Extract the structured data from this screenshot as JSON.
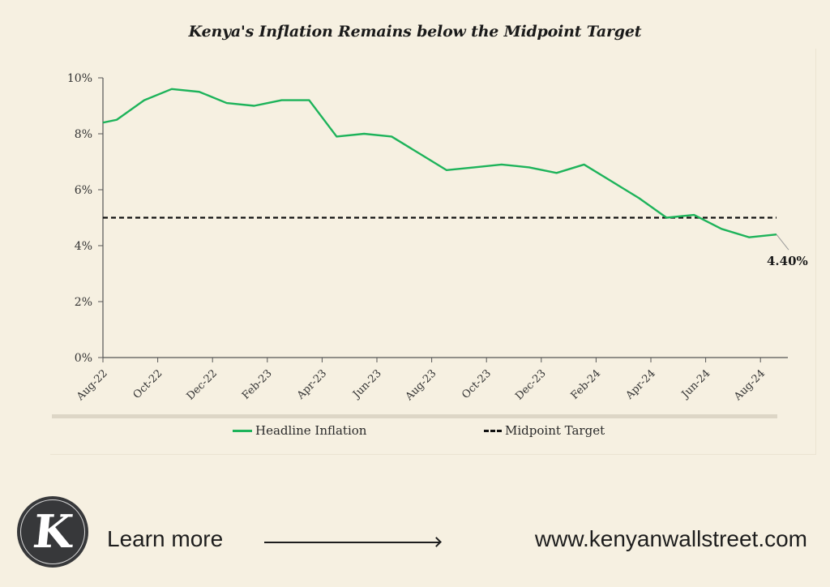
{
  "title": "Kenya's Inflation Remains below the Midpoint Target",
  "chart_data": {
    "type": "line",
    "title": "Kenya's Inflation Remains below the Midpoint Target",
    "xlabel": "",
    "ylabel": "",
    "ylim": [
      0,
      10
    ],
    "yticks": [
      "0%",
      "2%",
      "4%",
      "6%",
      "8%",
      "10%"
    ],
    "xticks": [
      "Aug-22",
      "Oct-22",
      "Dec-22",
      "Feb-23",
      "Apr-23",
      "Jun-23",
      "Aug-23",
      "Oct-23",
      "Dec-23",
      "Feb-24",
      "Apr-24",
      "Jun-24",
      "Aug-24"
    ],
    "x": [
      "Aug-22",
      "Sep-22",
      "Oct-22",
      "Nov-22",
      "Dec-22",
      "Jan-23",
      "Feb-23",
      "Mar-23",
      "Apr-23",
      "May-23",
      "Jun-23",
      "Jul-23",
      "Aug-23",
      "Sep-23",
      "Oct-23",
      "Nov-23",
      "Dec-23",
      "Jan-24",
      "Feb-24",
      "Mar-24",
      "Apr-24",
      "May-24",
      "Jun-24",
      "Jul-24",
      "Aug-24"
    ],
    "series": [
      {
        "name": "Headline Inflation",
        "color": "#1db35a",
        "style": "solid",
        "values": [
          8.5,
          9.2,
          9.6,
          9.5,
          9.1,
          9.0,
          9.2,
          9.2,
          7.9,
          8.0,
          7.9,
          7.3,
          6.7,
          6.8,
          6.9,
          6.8,
          6.6,
          6.9,
          6.3,
          5.7,
          5.0,
          5.1,
          4.6,
          4.3,
          4.4
        ]
      },
      {
        "name": "Midpoint Target",
        "color": "#111111",
        "style": "dashed",
        "values": [
          5,
          5,
          5,
          5,
          5,
          5,
          5,
          5,
          5,
          5,
          5,
          5,
          5,
          5,
          5,
          5,
          5,
          5,
          5,
          5,
          5,
          5,
          5,
          5,
          5
        ]
      }
    ],
    "annotations": [
      {
        "x": "Aug-24",
        "label": "4.40%"
      }
    ],
    "legend_position": "bottom",
    "grid": false
  },
  "legend": {
    "items": [
      {
        "label": "Headline Inflation"
      },
      {
        "label": "Midpoint Target"
      }
    ]
  },
  "annotation_label": "4.40%",
  "footer": {
    "logo_letter": "K",
    "learn_more": "Learn more",
    "url": "www.kenyanwallstreet.com"
  }
}
